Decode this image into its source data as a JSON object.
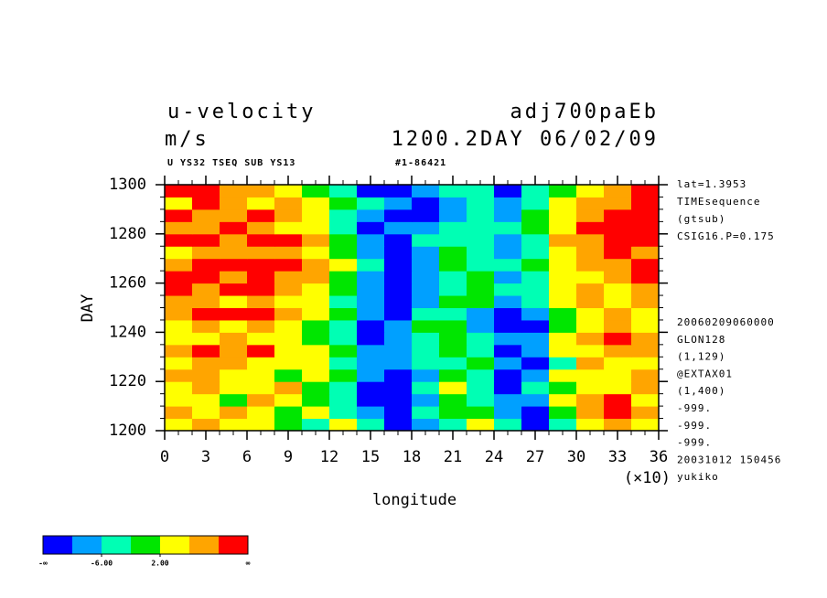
{
  "chart_data": {
    "type": "heatmap",
    "title": "u-velocity",
    "title_right": "adj700paEb",
    "units": "m/s",
    "time_label": "1200.2DAY 06/02/09",
    "subtitle": "U YS32 TSEQ SUB YS13",
    "subtitle_right": "#1-86421",
    "ylabel": "DAY",
    "xlabel": "longitude",
    "x_scale_label": "(×10)",
    "notes_top": [
      "lat=1.3953",
      "TIMEsequence",
      "(gtsub)",
      "CSIG16.P=0.175"
    ],
    "notes_bottom": [
      "20060209060000",
      "GLON128",
      "(1,129)",
      "@EXTAX01",
      "(1,400)",
      "-999.",
      "-999.",
      "-999.",
      "20031012 150456",
      "yukiko"
    ],
    "xlim": [
      0,
      36
    ],
    "ylim": [
      1200,
      1300
    ],
    "xticks": [
      0,
      3,
      6,
      9,
      12,
      15,
      18,
      21,
      24,
      27,
      30,
      33,
      36
    ],
    "yticks": [
      1200,
      1220,
      1240,
      1260,
      1280,
      1300
    ],
    "xminor_step": 1,
    "yminor_step": 5,
    "x": [
      1,
      3,
      5,
      7,
      9,
      11,
      13,
      15,
      17,
      19,
      21,
      23,
      25,
      27,
      29,
      31,
      33,
      35
    ],
    "y": [
      1202.5,
      1207.5,
      1212.5,
      1217.5,
      1222.5,
      1227.5,
      1232.5,
      1237.5,
      1242.5,
      1247.5,
      1252.5,
      1257.5,
      1262.5,
      1267.5,
      1272.5,
      1277.5,
      1282.5,
      1287.5,
      1292.5,
      1297.5
    ],
    "z": [
      [
        4,
        7,
        3,
        5,
        1,
        -3,
        4,
        -6,
        -12,
        -8,
        -3,
        2,
        -5,
        -11,
        -4,
        3,
        8,
        5
      ],
      [
        6,
        3,
        8,
        2,
        -2,
        4,
        -4,
        -9,
        -13,
        -5,
        1,
        -2,
        -8,
        -12,
        -2,
        9,
        11,
        6
      ],
      [
        2,
        5,
        1,
        7,
        3,
        -1,
        -3,
        -11,
        -14,
        -7,
        -1,
        -4,
        -10,
        -9,
        3,
        7,
        12,
        4
      ],
      [
        5,
        8,
        4,
        2,
        6,
        1,
        -6,
        -12,
        -11,
        -3,
        2,
        -5,
        -12,
        -6,
        1,
        5,
        3,
        6
      ],
      [
        9,
        6,
        3,
        5,
        -1,
        2,
        -2,
        -8,
        -13,
        -9,
        -2,
        -3,
        -11,
        -8,
        4,
        2,
        5,
        8
      ],
      [
        3,
        7,
        9,
        4,
        2,
        5,
        -3,
        -7,
        -10,
        -6,
        -4,
        -1,
        -9,
        -12,
        -3,
        6,
        4,
        3
      ],
      [
        7,
        11,
        8,
        12,
        5,
        3,
        -1,
        -9,
        -8,
        -4,
        -2,
        -6,
        -13,
        -10,
        2,
        5,
        7,
        9
      ],
      [
        5,
        4,
        6,
        3,
        2,
        1,
        -4,
        -11,
        -7,
        -3,
        1,
        -3,
        -10,
        -7,
        3,
        8,
        11,
        6
      ],
      [
        2,
        6,
        4,
        7,
        3,
        -2,
        -5,
        -12,
        -9,
        -1,
        -2,
        -8,
        -14,
        -11,
        -2,
        4,
        6,
        3
      ],
      [
        8,
        12,
        10,
        11,
        6,
        4,
        1,
        -10,
        -12,
        -4,
        -3,
        -7,
        -13,
        -9,
        1,
        5,
        7,
        4
      ],
      [
        6,
        9,
        5,
        8,
        4,
        2,
        -3,
        -8,
        -14,
        -7,
        0,
        -2,
        -10,
        -6,
        3,
        6,
        4,
        7
      ],
      [
        11,
        8,
        12,
        13,
        9,
        5,
        1,
        -9,
        -15,
        -10,
        -4,
        -1,
        -5,
        -3,
        2,
        7,
        5,
        9
      ],
      [
        12,
        10,
        7,
        11,
        8,
        6,
        0,
        -8,
        -14,
        -9,
        -3,
        -2,
        -7,
        -4,
        4,
        5,
        8,
        11
      ],
      [
        9,
        12,
        11,
        13,
        10,
        7,
        2,
        -6,
        -11,
        -8,
        -1,
        -3,
        -5,
        -2,
        3,
        6,
        9,
        12
      ],
      [
        4,
        7,
        9,
        6,
        8,
        5,
        1,
        -9,
        -13,
        -7,
        -2,
        -4,
        -8,
        -5,
        2,
        7,
        10,
        8
      ],
      [
        11,
        13,
        8,
        10,
        12,
        6,
        -2,
        -10,
        -12,
        -6,
        -3,
        -5,
        -7,
        -3,
        6,
        9,
        13,
        14
      ],
      [
        9,
        6,
        10,
        7,
        5,
        3,
        -4,
        -12,
        -10,
        -9,
        -6,
        -3,
        -6,
        -1,
        5,
        11,
        14,
        12
      ],
      [
        12,
        9,
        7,
        11,
        6,
        2,
        -3,
        -8,
        -11,
        -13,
        -8,
        -4,
        -10,
        -2,
        3,
        7,
        12,
        10
      ],
      [
        5,
        11,
        9,
        4,
        7,
        3,
        1,
        -6,
        -9,
        -11,
        -7,
        -3,
        -8,
        -4,
        2,
        6,
        9,
        11
      ],
      [
        10,
        13,
        6,
        8,
        2,
        -2,
        -4,
        -12,
        -13,
        -8,
        -5,
        -6,
        -11,
        -3,
        1,
        4,
        8,
        12
      ]
    ],
    "levels": [
      -10,
      -6,
      -2,
      2,
      6,
      10
    ],
    "colors": [
      "#0000ff",
      "#00a0ff",
      "#00ffb4",
      "#00e600",
      "#ffff00",
      "#ffa500",
      "#ff0000"
    ],
    "colorbar_ticks": [
      {
        "value": -6,
        "label": "-6.00"
      },
      {
        "value": 2,
        "label": "2.00"
      }
    ],
    "colorbar_end_labels": [
      "-∞",
      "∞"
    ]
  }
}
